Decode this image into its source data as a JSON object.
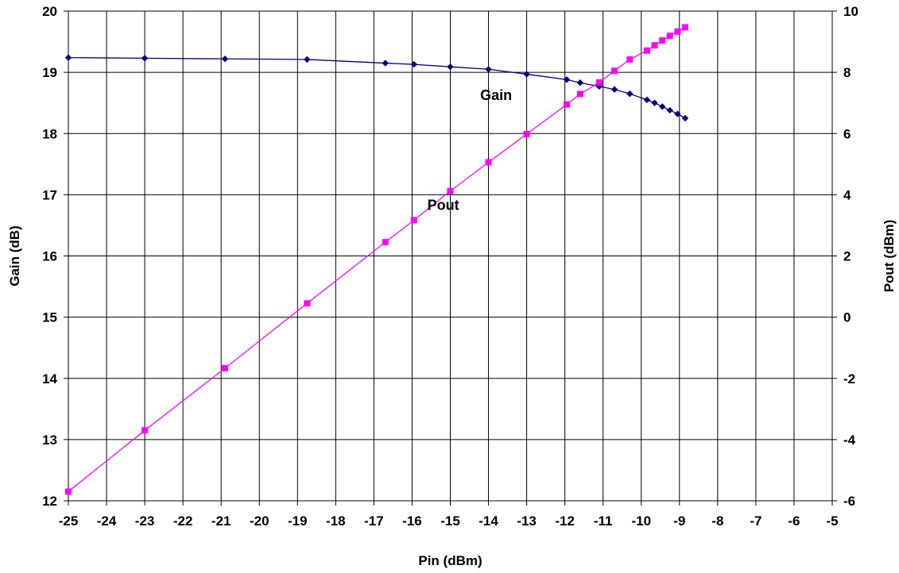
{
  "chart_data": {
    "type": "line",
    "xlabel": "Pin  (dBm)",
    "ylabel_left": "Gain  (dB)",
    "ylabel_right": "Pout (dBm)",
    "xlim": [
      -25,
      -5
    ],
    "ylim_left": [
      12,
      20
    ],
    "ylim_right": [
      -6,
      10
    ],
    "x_ticks": [
      -25,
      -24,
      -23,
      -22,
      -21,
      -20,
      -19,
      -18,
      -17,
      -16,
      -15,
      -14,
      -13,
      -12,
      -11,
      -10,
      -9,
      -8,
      -7,
      -6,
      -5
    ],
    "y_left_ticks": [
      12,
      13,
      14,
      15,
      16,
      17,
      18,
      19,
      20
    ],
    "y_right_ticks": [
      -6,
      -4,
      -2,
      0,
      2,
      4,
      6,
      8,
      10
    ],
    "grid": true,
    "colors": {
      "gain": "#000080",
      "pout": "#ff00ff"
    },
    "series": [
      {
        "name": "Gain",
        "axis": "left",
        "marker": "diamond",
        "x": [
          -25,
          -23,
          -20.9,
          -18.75,
          -16.7,
          -15.95,
          -15,
          -14,
          -13,
          -11.95,
          -11.6,
          -11.1,
          -10.7,
          -10.3,
          -9.85,
          -9.65,
          -9.45,
          -9.25,
          -9.05,
          -8.85
        ],
        "values": [
          19.24,
          19.23,
          19.22,
          19.21,
          19.15,
          19.13,
          19.09,
          19.05,
          18.97,
          18.88,
          18.83,
          18.77,
          18.72,
          18.65,
          18.55,
          18.5,
          18.44,
          18.38,
          18.32,
          18.25
        ]
      },
      {
        "name": "Pout",
        "axis": "right",
        "marker": "square",
        "x": [
          -25,
          -23,
          -20.9,
          -18.75,
          -16.7,
          -15.95,
          -15,
          -14,
          -13,
          -11.95,
          -11.6,
          -11.1,
          -10.7,
          -10.3,
          -9.85,
          -9.65,
          -9.45,
          -9.25,
          -9.05,
          -8.85
        ],
        "values": [
          -5.7,
          -3.7,
          -1.67,
          0.45,
          2.45,
          3.17,
          4.12,
          5.06,
          5.98,
          6.95,
          7.29,
          7.67,
          8.05,
          8.42,
          8.71,
          8.88,
          9.04,
          9.19,
          9.33,
          9.47
        ]
      }
    ],
    "annotations": [
      {
        "text": "Gain",
        "series": "Gain"
      },
      {
        "text": "Pout",
        "series": "Pout"
      }
    ]
  }
}
